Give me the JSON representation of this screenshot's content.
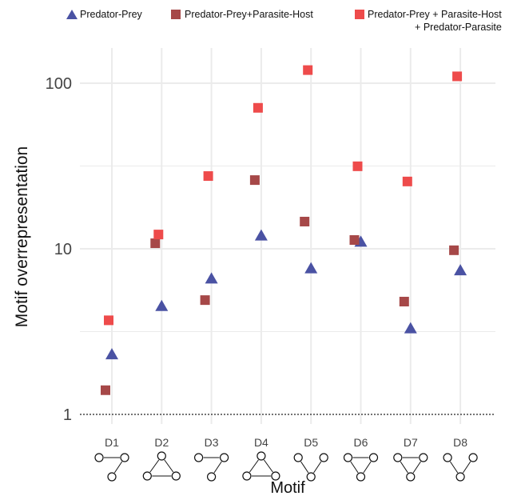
{
  "chart_data": {
    "type": "scatter",
    "xlabel": "Motif",
    "ylabel": "Motif overrepresentation",
    "y_scale": "log",
    "ylim": [
      0.95,
      160
    ],
    "yticks": [
      1,
      10,
      100
    ],
    "ytick_labels": [
      "1",
      "10",
      "100"
    ],
    "reference_line": {
      "y": 1,
      "style": "dotted"
    },
    "grid": true,
    "legend_position": "top",
    "categories": [
      "D1",
      "D2",
      "D3",
      "D4",
      "D5",
      "D6",
      "D7",
      "D8"
    ],
    "series": [
      {
        "name": "Predator-Prey",
        "marker": "triangle",
        "color": "#4a52a3",
        "values": [
          2.3,
          4.5,
          6.6,
          12.0,
          7.6,
          11.0,
          3.3,
          7.4
        ]
      },
      {
        "name": "Predator-Prey+Parasite-Host",
        "marker": "square",
        "color": "#a64848",
        "values": [
          1.4,
          10.8,
          4.9,
          26.0,
          14.6,
          11.3,
          4.8,
          9.8
        ]
      },
      {
        "name": "Predator-Prey + Parasite-Host\n+ Predator-Parasite",
        "marker": "square",
        "color": "#ee4b4b",
        "values": [
          3.7,
          12.2,
          27.5,
          71.0,
          120.0,
          31.5,
          25.5,
          110.0
        ]
      }
    ]
  }
}
